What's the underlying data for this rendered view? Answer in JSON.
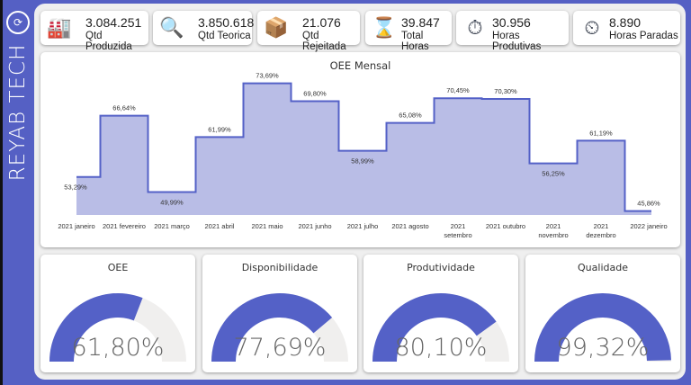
{
  "brand": "REYAB TECH",
  "colors": {
    "accent": "#5461c7",
    "fill": "#b9bde6",
    "track": "#f0efee"
  },
  "kpis": [
    {
      "value": "3.084.251",
      "label": "Qtd Produzida",
      "icon": "robot-arm-icon",
      "glyph": "🏭"
    },
    {
      "value": "3.850.618",
      "label": "Qtd Teorica",
      "icon": "analysis-magnifier-icon",
      "glyph": "🔍"
    },
    {
      "value": "21.076",
      "label": "Qtd Rejeitada",
      "icon": "box-icon",
      "glyph": "📦"
    },
    {
      "value": "39.847",
      "label": "Total Horas",
      "icon": "hourglass-icon",
      "glyph": "⌛"
    },
    {
      "value": "30.956",
      "label": "Horas Produtivas",
      "icon": "stopwatch-icon",
      "glyph": "⏱"
    },
    {
      "value": "8.890",
      "label": "Horas Paradas",
      "icon": "clock-sleep-icon",
      "glyph": "⏲"
    }
  ],
  "chart_data": {
    "type": "step-area",
    "title": "OEE Mensal",
    "categories": [
      "2021 janeiro",
      "2021 fevereiro",
      "2021 março",
      "2021 abril",
      "2021 maio",
      "2021 junho",
      "2021 julho",
      "2021 agosto",
      "2021 setembro",
      "2021 outubro",
      "2021 novembro",
      "2021 dezembro",
      "2022 janeiro"
    ],
    "values": [
      53.29,
      66.64,
      49.99,
      61.99,
      73.69,
      69.8,
      58.99,
      65.08,
      70.45,
      70.3,
      56.25,
      61.19,
      45.86
    ],
    "labels": [
      "53,29%",
      "66,64%",
      "49,99%",
      "61,99%",
      "73,69%",
      "69,80%",
      "58,99%",
      "65,08%",
      "70,45%",
      "70,30%",
      "56,25%",
      "61,19%",
      "45,86%"
    ],
    "ylim": [
      45,
      75
    ],
    "grid": false
  },
  "gauges": [
    {
      "title": "OEE",
      "value": 61.8,
      "display": "61,80%"
    },
    {
      "title": "Disponibilidade",
      "value": 77.69,
      "display": "77,69%"
    },
    {
      "title": "Produtividade",
      "value": 80.1,
      "display": "80,10%"
    },
    {
      "title": "Qualidade",
      "value": 99.32,
      "display": "99,32%"
    }
  ]
}
